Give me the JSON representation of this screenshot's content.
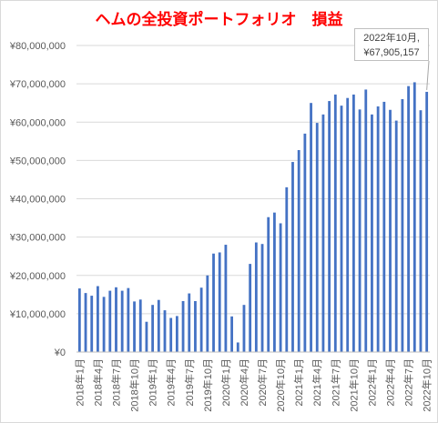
{
  "chart_data": {
    "type": "bar",
    "title": "ヘムの全投資ポートフォリオ　損益",
    "xlabel": "",
    "ylabel": "",
    "ylim": [
      0,
      80000000
    ],
    "yticks": [
      0,
      10000000,
      20000000,
      30000000,
      40000000,
      50000000,
      60000000,
      70000000,
      80000000
    ],
    "ytick_labels": [
      "¥0",
      "¥10,000,000",
      "¥20,000,000",
      "¥30,000,000",
      "¥40,000,000",
      "¥50,000,000",
      "¥60,000,000",
      "¥70,000,000",
      "¥80,000,000"
    ],
    "grid": true,
    "bar_color": "#4472c4",
    "categories": [
      "2018年1月",
      "2018年2月",
      "2018年3月",
      "2018年4月",
      "2018年5月",
      "2018年6月",
      "2018年7月",
      "2018年8月",
      "2018年9月",
      "2018年10月",
      "2018年11月",
      "2018年12月",
      "2019年1月",
      "2019年2月",
      "2019年3月",
      "2019年4月",
      "2019年5月",
      "2019年6月",
      "2019年7月",
      "2019年8月",
      "2019年9月",
      "2019年10月",
      "2019年11月",
      "2019年12月",
      "2020年1月",
      "2020年2月",
      "2020年3月",
      "2020年4月",
      "2020年5月",
      "2020年6月",
      "2020年7月",
      "2020年8月",
      "2020年9月",
      "2020年10月",
      "2020年11月",
      "2020年12月",
      "2021年1月",
      "2021年2月",
      "2021年3月",
      "2021年4月",
      "2021年5月",
      "2021年6月",
      "2021年7月",
      "2021年8月",
      "2021年9月",
      "2021年10月",
      "2021年11月",
      "2021年12月",
      "2022年1月",
      "2022年2月",
      "2022年3月",
      "2022年4月",
      "2022年5月",
      "2022年6月",
      "2022年7月",
      "2022年8月",
      "2022年9月",
      "2022年10月"
    ],
    "x_tick_labels_shown": [
      "2018年1月",
      "2018年4月",
      "2018年7月",
      "2018年10月",
      "2019年1月",
      "2019年4月",
      "2019年7月",
      "2019年10月",
      "2020年1月",
      "2020年4月",
      "2020年7月",
      "2020年10月",
      "2021年1月",
      "2021年4月",
      "2021年7月",
      "2021年10月",
      "2022年1月",
      "2022年4月",
      "2022年7月",
      "2022年10月"
    ],
    "values": [
      16600000,
      15400000,
      14700000,
      17200000,
      14400000,
      16000000,
      16900000,
      16000000,
      16700000,
      13200000,
      13700000,
      7900000,
      12300000,
      13600000,
      10900000,
      8900000,
      9400000,
      13300000,
      15300000,
      13300000,
      16800000,
      20000000,
      25700000,
      26000000,
      28000000,
      9300000,
      2500000,
      12300000,
      23000000,
      28600000,
      28200000,
      35200000,
      36400000,
      33600000,
      43000000,
      49600000,
      52700000,
      57000000,
      65000000,
      59800000,
      62000000,
      65500000,
      67200000,
      64300000,
      66300000,
      67200000,
      63300000,
      68500000,
      62000000,
      64100000,
      65300000,
      63200000,
      60400000,
      66000000,
      69400000,
      70400000,
      63100000,
      67905157
    ],
    "data_label": {
      "category": "2022年10月",
      "value_text": "¥67,905,157",
      "line1": "2022年10月,",
      "line2": "¥67,905,157"
    }
  }
}
